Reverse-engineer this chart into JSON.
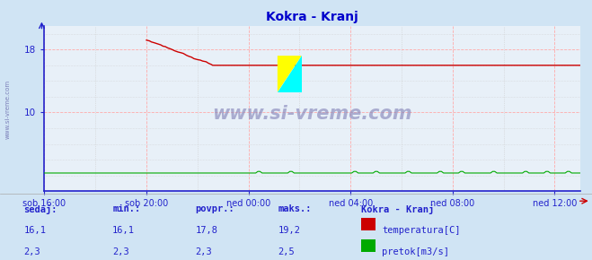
{
  "title": "Kokra - Kranj",
  "title_color": "#0000cc",
  "bg_color": "#d0e4f4",
  "plot_bg_color": "#e8f0f8",
  "x_labels": [
    "sob 16:00",
    "sob 20:00",
    "ned 00:00",
    "ned 04:00",
    "ned 08:00",
    "ned 12:00"
  ],
  "x_ticks_hours": [
    0,
    4,
    8,
    12,
    16,
    20
  ],
  "total_hours": 21,
  "ylim_min": 0,
  "ylim_max": 21,
  "yticks": [
    10,
    18
  ],
  "temp_color": "#cc0000",
  "flow_color": "#00aa00",
  "axis_color": "#2222cc",
  "text_color": "#2222cc",
  "watermark_text": "www.si-vreme.com",
  "watermark_color": "#8888bb",
  "label_sedaj": "sedaj:",
  "label_min": "min.:",
  "label_povpr": "povpr.:",
  "label_maks": "maks.:",
  "label_station": "Kokra - Kranj",
  "label_temp": "temperatura[C]",
  "label_flow": "pretok[m3/s]",
  "val_sedaj_temp": "16,1",
  "val_min_temp": "16,1",
  "val_povpr_temp": "17,8",
  "val_maks_temp": "19,2",
  "val_sedaj_flow": "2,3",
  "val_min_flow": "2,3",
  "val_povpr_flow": "2,3",
  "val_maks_flow": "2,5",
  "footer_bg": "#ffffff",
  "red_grid_color": "#ffaaaa",
  "gray_grid_color": "#cccccc",
  "logo_yellow": "#ffff00",
  "logo_cyan": "#00ffff"
}
